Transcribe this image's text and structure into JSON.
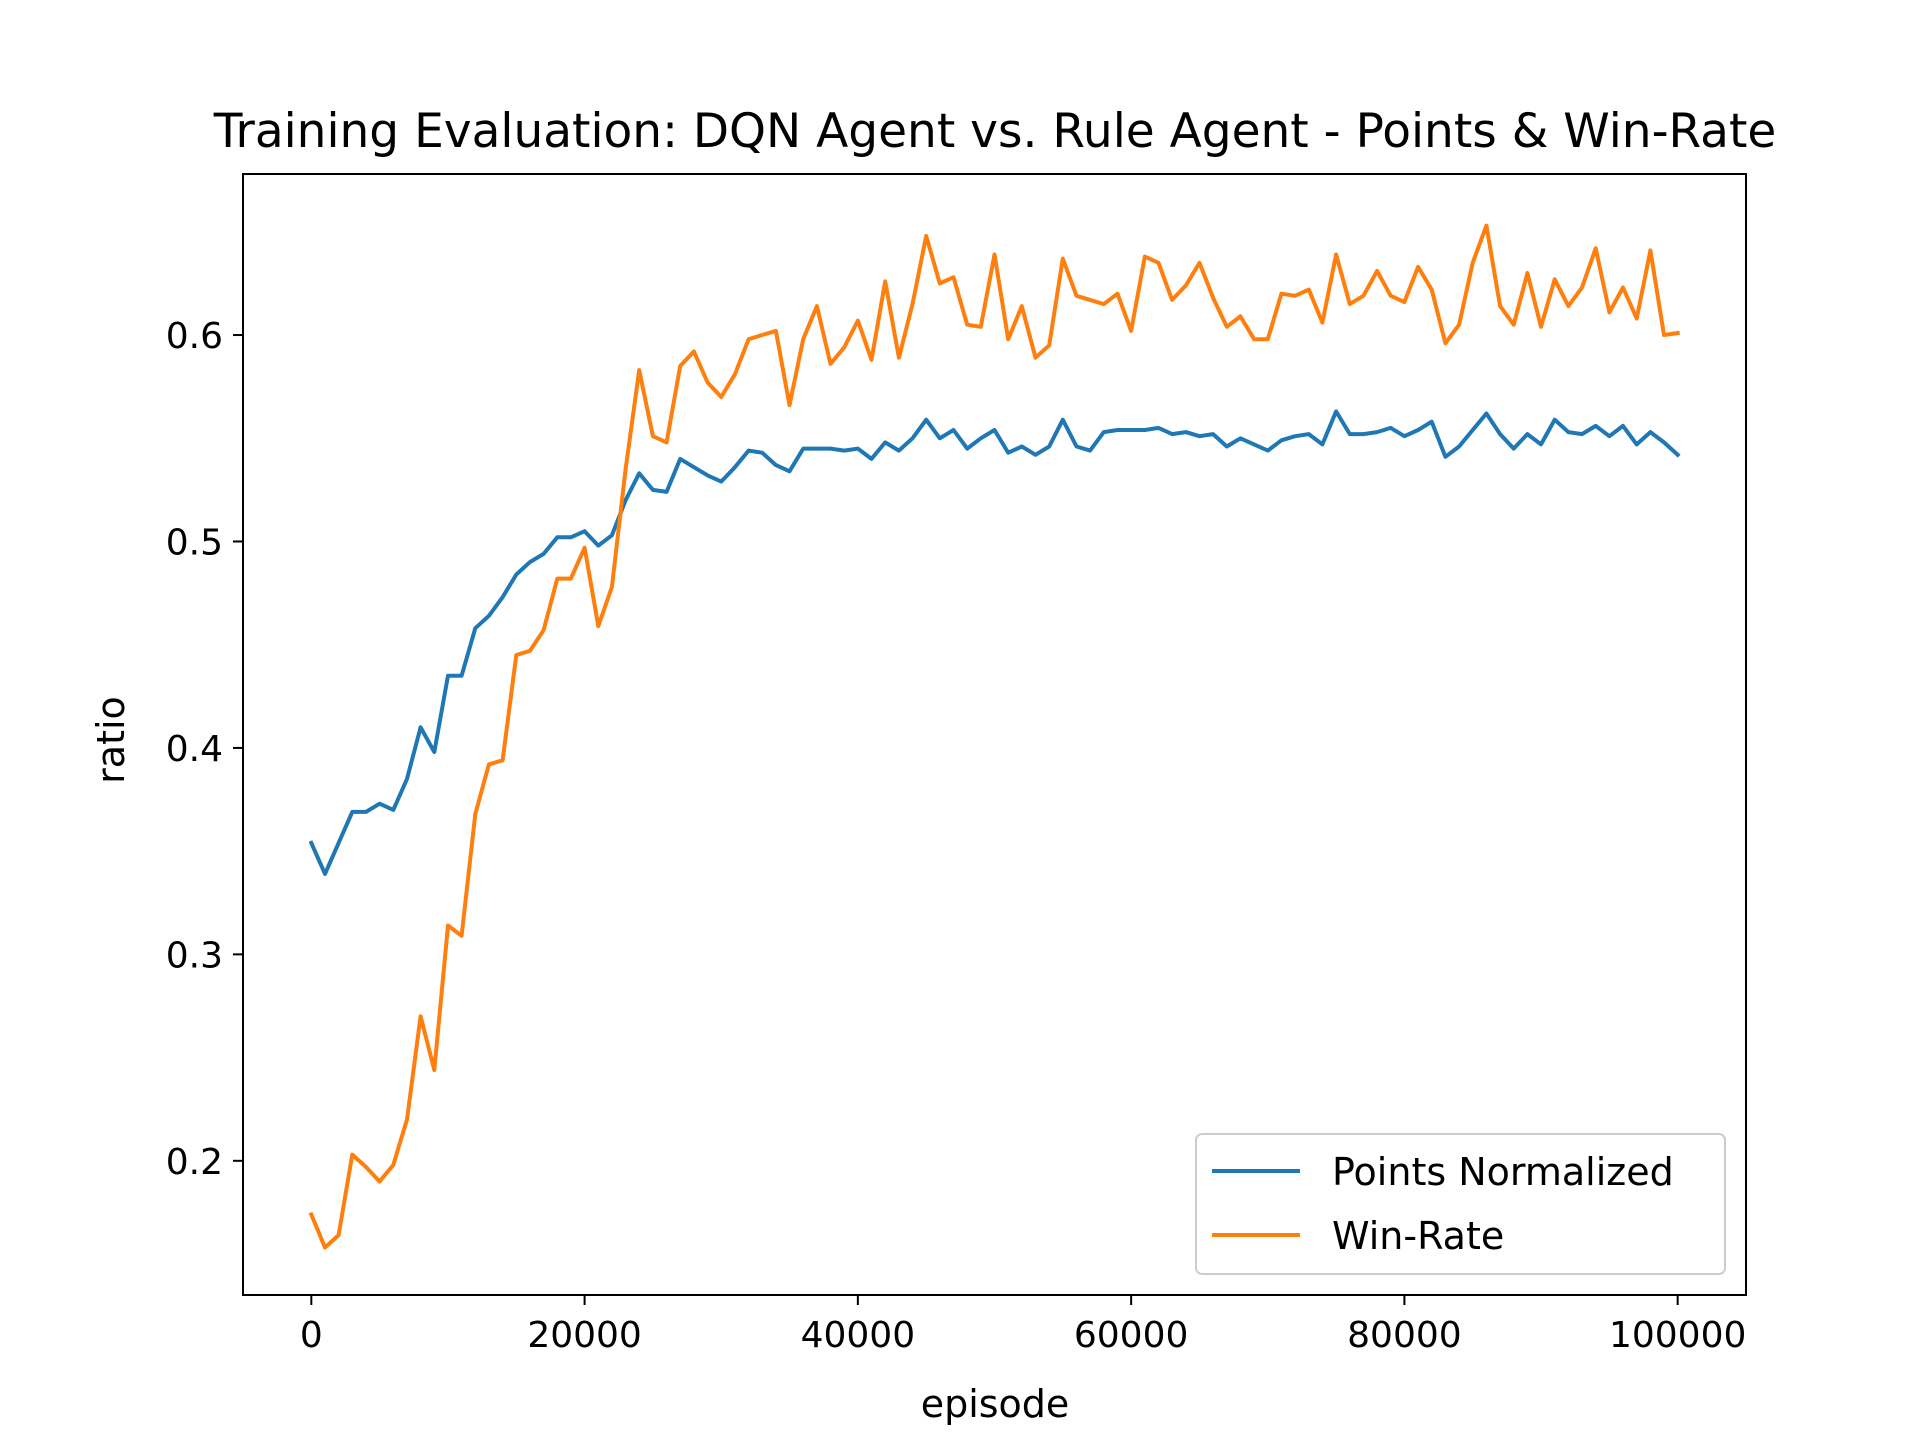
{
  "chart_data": {
    "type": "line",
    "title": "Training Evaluation: DQN Agent vs. Rule Agent - Points & Win-Rate",
    "xlabel": "episode",
    "ylabel": "ratio",
    "xlim": [
      -5000,
      105000
    ],
    "ylim": [
      0.135,
      0.678
    ],
    "xticks": [
      0,
      20000,
      40000,
      60000,
      80000,
      100000
    ],
    "xtick_labels": [
      "0",
      "20000",
      "40000",
      "60000",
      "80000",
      "100000"
    ],
    "yticks": [
      0.2,
      0.3,
      0.4,
      0.5,
      0.6
    ],
    "ytick_labels": [
      "0.2",
      "0.3",
      "0.4",
      "0.5",
      "0.6"
    ],
    "grid": false,
    "legend_position": "lower-right",
    "x": [
      0,
      1000,
      2000,
      3000,
      4000,
      5000,
      6000,
      7000,
      8000,
      9000,
      10000,
      11000,
      12000,
      13000,
      14000,
      15000,
      16000,
      17000,
      18000,
      19000,
      20000,
      21000,
      22000,
      23000,
      24000,
      25000,
      26000,
      27000,
      28000,
      29000,
      30000,
      31000,
      32000,
      33000,
      34000,
      35000,
      36000,
      37000,
      38000,
      39000,
      40000,
      41000,
      42000,
      43000,
      44000,
      45000,
      46000,
      47000,
      48000,
      49000,
      50000,
      51000,
      52000,
      53000,
      54000,
      55000,
      56000,
      57000,
      58000,
      59000,
      60000,
      61000,
      62000,
      63000,
      64000,
      65000,
      66000,
      67000,
      68000,
      69000,
      70000,
      71000,
      72000,
      73000,
      74000,
      75000,
      76000,
      77000,
      78000,
      79000,
      80000,
      81000,
      82000,
      83000,
      84000,
      85000,
      86000,
      87000,
      88000,
      89000,
      90000,
      91000,
      92000,
      93000,
      94000,
      95000,
      96000,
      97000,
      98000,
      99000,
      100000
    ],
    "series": [
      {
        "name": "Points Normalized",
        "color": "#1f77b4",
        "values": [
          0.354,
          0.339,
          0.354,
          0.369,
          0.369,
          0.373,
          0.37,
          0.385,
          0.41,
          0.398,
          0.435,
          0.435,
          0.458,
          0.464,
          0.473,
          0.484,
          0.49,
          0.494,
          0.502,
          0.502,
          0.505,
          0.498,
          0.503,
          0.52,
          0.533,
          0.525,
          0.524,
          0.54,
          0.536,
          0.532,
          0.529,
          0.536,
          0.544,
          0.543,
          0.537,
          0.534,
          0.545,
          0.545,
          0.545,
          0.544,
          0.545,
          0.54,
          0.548,
          0.544,
          0.55,
          0.559,
          0.55,
          0.554,
          0.545,
          0.55,
          0.554,
          0.543,
          0.546,
          0.542,
          0.546,
          0.559,
          0.546,
          0.544,
          0.553,
          0.554,
          0.554,
          0.554,
          0.555,
          0.552,
          0.553,
          0.551,
          0.552,
          0.546,
          0.55,
          0.547,
          0.544,
          0.549,
          0.551,
          0.552,
          0.547,
          0.563,
          0.552,
          0.552,
          0.553,
          0.555,
          0.551,
          0.554,
          0.558,
          0.541,
          0.546,
          0.554,
          0.562,
          0.552,
          0.545,
          0.552,
          0.547,
          0.559,
          0.553,
          0.552,
          0.556,
          0.551,
          0.556,
          0.547,
          0.553,
          0.548,
          0.542
        ]
      },
      {
        "name": "Win-Rate",
        "color": "#ff7f0e",
        "values": [
          0.174,
          0.158,
          0.164,
          0.203,
          0.197,
          0.19,
          0.198,
          0.22,
          0.27,
          0.244,
          0.314,
          0.309,
          0.368,
          0.392,
          0.394,
          0.445,
          0.447,
          0.457,
          0.482,
          0.482,
          0.497,
          0.459,
          0.478,
          0.535,
          0.583,
          0.551,
          0.548,
          0.585,
          0.592,
          0.577,
          0.57,
          0.581,
          0.598,
          0.6,
          0.602,
          0.566,
          0.598,
          0.614,
          0.586,
          0.594,
          0.607,
          0.588,
          0.626,
          0.589,
          0.615,
          0.648,
          0.625,
          0.628,
          0.605,
          0.604,
          0.639,
          0.598,
          0.614,
          0.589,
          0.595,
          0.637,
          0.619,
          0.617,
          0.615,
          0.62,
          0.602,
          0.638,
          0.635,
          0.617,
          0.624,
          0.635,
          0.618,
          0.604,
          0.609,
          0.598,
          0.598,
          0.62,
          0.619,
          0.622,
          0.606,
          0.639,
          0.615,
          0.619,
          0.631,
          0.619,
          0.616,
          0.633,
          0.622,
          0.596,
          0.605,
          0.635,
          0.653,
          0.614,
          0.605,
          0.63,
          0.604,
          0.627,
          0.614,
          0.623,
          0.642,
          0.611,
          0.623,
          0.608,
          0.641,
          0.6,
          0.601
        ]
      }
    ]
  }
}
